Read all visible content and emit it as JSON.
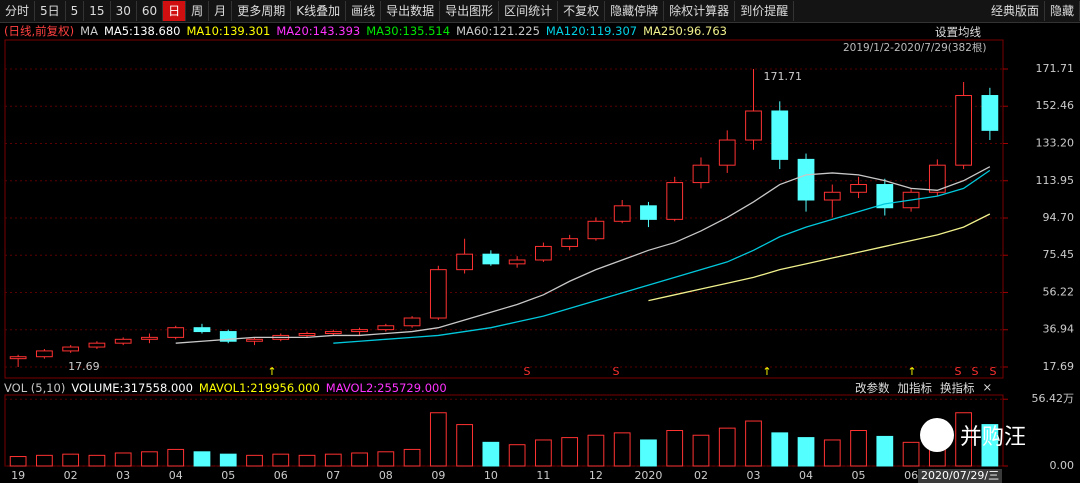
{
  "toolbar": {
    "items": [
      "分时",
      "5日",
      "5",
      "15",
      "30",
      "60",
      "日",
      "周",
      "月",
      "更多周期",
      "K线叠加",
      "画线",
      "导出数据",
      "导出图形",
      "区间统计",
      "不复权",
      "隐藏停牌",
      "除权计算器",
      "到价提醒"
    ],
    "active": 6,
    "right_items": [
      "经典版面",
      "隐藏"
    ]
  },
  "price_legend": {
    "mode": "(日线,前复权)",
    "ma_label": "MA",
    "items": [
      {
        "text": "MA5:138.680",
        "color": "#ffffff"
      },
      {
        "text": "MA10:139.301",
        "color": "#ffff00"
      },
      {
        "text": "MA20:143.393",
        "color": "#ff33ff"
      },
      {
        "text": "MA30:135.514",
        "color": "#00e600"
      },
      {
        "text": "MA60:121.225",
        "color": "#c8c8c8"
      },
      {
        "text": "MA120:119.307",
        "color": "#00d2e6"
      },
      {
        "text": "MA250:96.763",
        "color": "#f0f08c"
      }
    ],
    "settings": "设置均线",
    "range": "2019/1/2-2020/7/29(382根)"
  },
  "volume_legend": {
    "items": [
      {
        "text": "VOL (5,10)",
        "color": "#c8c8c8"
      },
      {
        "text": "VOLUME:317558.000",
        "color": "#ffffff"
      },
      {
        "text": "MAVOL1:219956.000",
        "color": "#ffff00"
      },
      {
        "text": "MAVOL2:255729.000",
        "color": "#ff33ff"
      }
    ],
    "buttons": [
      "改参数",
      "加指标",
      "换指标",
      "×"
    ]
  },
  "cursor_label": "2020/07/29/三",
  "watermark": "并购汪",
  "chart_data": [
    {
      "type": "candlestick",
      "categories": [
        "19",
        null,
        "02",
        null,
        "03",
        null,
        "04",
        null,
        "05",
        null,
        "06",
        null,
        "07",
        null,
        "08",
        null,
        "09",
        null,
        "10",
        null,
        "11",
        null,
        "12",
        null,
        "2020",
        null,
        "02",
        null,
        "03",
        null,
        "04",
        null,
        "05",
        null,
        "06",
        null,
        null,
        null
      ],
      "open": [
        22,
        23,
        26,
        28,
        30,
        32,
        33,
        38,
        36,
        31,
        32,
        34,
        35,
        36,
        37,
        39,
        43,
        68,
        76,
        71,
        73,
        80,
        84,
        93,
        101,
        94,
        113,
        122,
        135,
        150,
        125,
        104,
        108,
        112,
        100,
        108,
        122,
        158
      ],
      "high": [
        24,
        27,
        29,
        31,
        33,
        35,
        39,
        40,
        37,
        33,
        35,
        36,
        37,
        38,
        40,
        44,
        70,
        84,
        78,
        75,
        82,
        86,
        95,
        104,
        103,
        116,
        126,
        140,
        171.71,
        155,
        128,
        112,
        116,
        115,
        110,
        125,
        165,
        162
      ],
      "low": [
        17.69,
        22,
        25,
        27,
        29,
        30,
        32,
        35,
        30,
        29,
        31,
        33,
        34,
        34,
        36,
        38,
        42,
        66,
        70,
        69,
        72,
        78,
        83,
        92,
        90,
        93,
        110,
        118,
        130,
        120,
        98,
        95,
        105,
        96,
        98,
        106,
        120,
        135
      ],
      "close": [
        23,
        26,
        28,
        30,
        32,
        33,
        38,
        36,
        31,
        32,
        34,
        35,
        36,
        37,
        39,
        43,
        68,
        76,
        71,
        73,
        80,
        84,
        93,
        101,
        94,
        113,
        122,
        135,
        150,
        125,
        104,
        108,
        112,
        100,
        108,
        122,
        158,
        140
      ],
      "up_color": "#ff3232",
      "down_color": "#54ffff",
      "series": [
        {
          "name": "MA60",
          "color": "#c8c8c8",
          "values": [
            null,
            null,
            null,
            null,
            null,
            null,
            30,
            31,
            32,
            33,
            33,
            33,
            34,
            34,
            35,
            36,
            38,
            42,
            46,
            50,
            55,
            62,
            68,
            73,
            78,
            82,
            88,
            95,
            103,
            112,
            117,
            118,
            117,
            114,
            110,
            109,
            114,
            121.225
          ]
        },
        {
          "name": "MA120",
          "color": "#00c8dc",
          "values": [
            null,
            null,
            null,
            null,
            null,
            null,
            null,
            null,
            null,
            null,
            null,
            null,
            30,
            31,
            32,
            33,
            34,
            36,
            38,
            41,
            44,
            48,
            52,
            56,
            60,
            64,
            68,
            72,
            78,
            85,
            90,
            94,
            98,
            102,
            104,
            106,
            110,
            119.307
          ]
        },
        {
          "name": "MA250",
          "color": "#f0f08c",
          "values": [
            null,
            null,
            null,
            null,
            null,
            null,
            null,
            null,
            null,
            null,
            null,
            null,
            null,
            null,
            null,
            null,
            null,
            null,
            null,
            null,
            null,
            null,
            null,
            null,
            52,
            55,
            58,
            61,
            64,
            68,
            71,
            74,
            77,
            80,
            83,
            86,
            90,
            96.763
          ]
        }
      ],
      "ylim": [
        12,
        186.7
      ],
      "yticks": [
        171.71,
        152.46,
        {
          "value": 133.2,
          "label": "133.20"
        },
        113.95,
        {
          "value": 94.7,
          "label": "94.70"
        },
        75.45,
        56.22,
        36.94,
        17.69
      ],
      "grid": true
    },
    {
      "type": "bar",
      "values": [
        8,
        9,
        10,
        9,
        11,
        12,
        14,
        12,
        10,
        9,
        10,
        9,
        10,
        11,
        12,
        14,
        45,
        35,
        20,
        18,
        22,
        24,
        26,
        28,
        22,
        30,
        26,
        32,
        38,
        28,
        24,
        22,
        30,
        25,
        20,
        26,
        45,
        35
      ],
      "ylim": [
        0,
        60
      ],
      "yticks": [
        {
          "value": 56.42,
          "label": "56.42万"
        },
        {
          "value": 0,
          "label": "0.00"
        }
      ],
      "grid": true
    }
  ]
}
